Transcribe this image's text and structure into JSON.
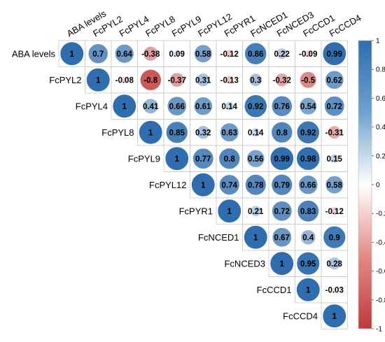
{
  "chart_data": {
    "type": "heatmap",
    "subtype": "correlation-circle-upper-triangle",
    "variables": [
      "ABA levels",
      "FcPYL2",
      "FcPYL4",
      "FcPYL8",
      "FcPYL9",
      "FcPYL12",
      "FcPYR1",
      "FcNCED1",
      "FcNCED3",
      "FcCCD1",
      "FcCCD4"
    ],
    "matrix": [
      [
        1,
        0.7,
        0.64,
        -0.38,
        0.09,
        0.58,
        -0.12,
        0.86,
        0.22,
        -0.09,
        0.99
      ],
      [
        null,
        1,
        -0.08,
        -0.8,
        -0.37,
        0.31,
        -0.13,
        0.3,
        -0.32,
        -0.5,
        0.62
      ],
      [
        null,
        null,
        1,
        0.41,
        0.66,
        0.61,
        0.14,
        0.92,
        0.76,
        0.54,
        0.72
      ],
      [
        null,
        null,
        null,
        1,
        0.85,
        0.32,
        0.63,
        0.14,
        0.8,
        0.92,
        -0.31
      ],
      [
        null,
        null,
        null,
        null,
        1,
        0.77,
        0.8,
        0.56,
        0.99,
        0.98,
        0.15
      ],
      [
        null,
        null,
        null,
        null,
        null,
        1,
        0.74,
        0.78,
        0.79,
        0.66,
        0.58
      ],
      [
        null,
        null,
        null,
        null,
        null,
        null,
        1,
        0.21,
        0.72,
        0.83,
        -0.12
      ],
      [
        null,
        null,
        null,
        null,
        null,
        null,
        null,
        1,
        0.67,
        0.4,
        0.9
      ],
      [
        null,
        null,
        null,
        null,
        null,
        null,
        null,
        null,
        1,
        0.95,
        0.28
      ],
      [
        null,
        null,
        null,
        null,
        null,
        null,
        null,
        null,
        null,
        1,
        -0.03
      ],
      [
        null,
        null,
        null,
        null,
        null,
        null,
        null,
        null,
        null,
        null,
        1
      ]
    ],
    "colorbar": {
      "range": [
        -1,
        1
      ],
      "ticks": [
        "1",
        "0.8",
        "0.6",
        "0.4",
        "0.2",
        "0",
        "-0.2",
        "-0.4",
        "-0.6",
        "-0.8",
        "-1"
      ],
      "colors": {
        "positive": "#2F6DAE",
        "zero": "#FFFFFF",
        "negative": "#C0393B"
      },
      "placement": "right"
    }
  }
}
